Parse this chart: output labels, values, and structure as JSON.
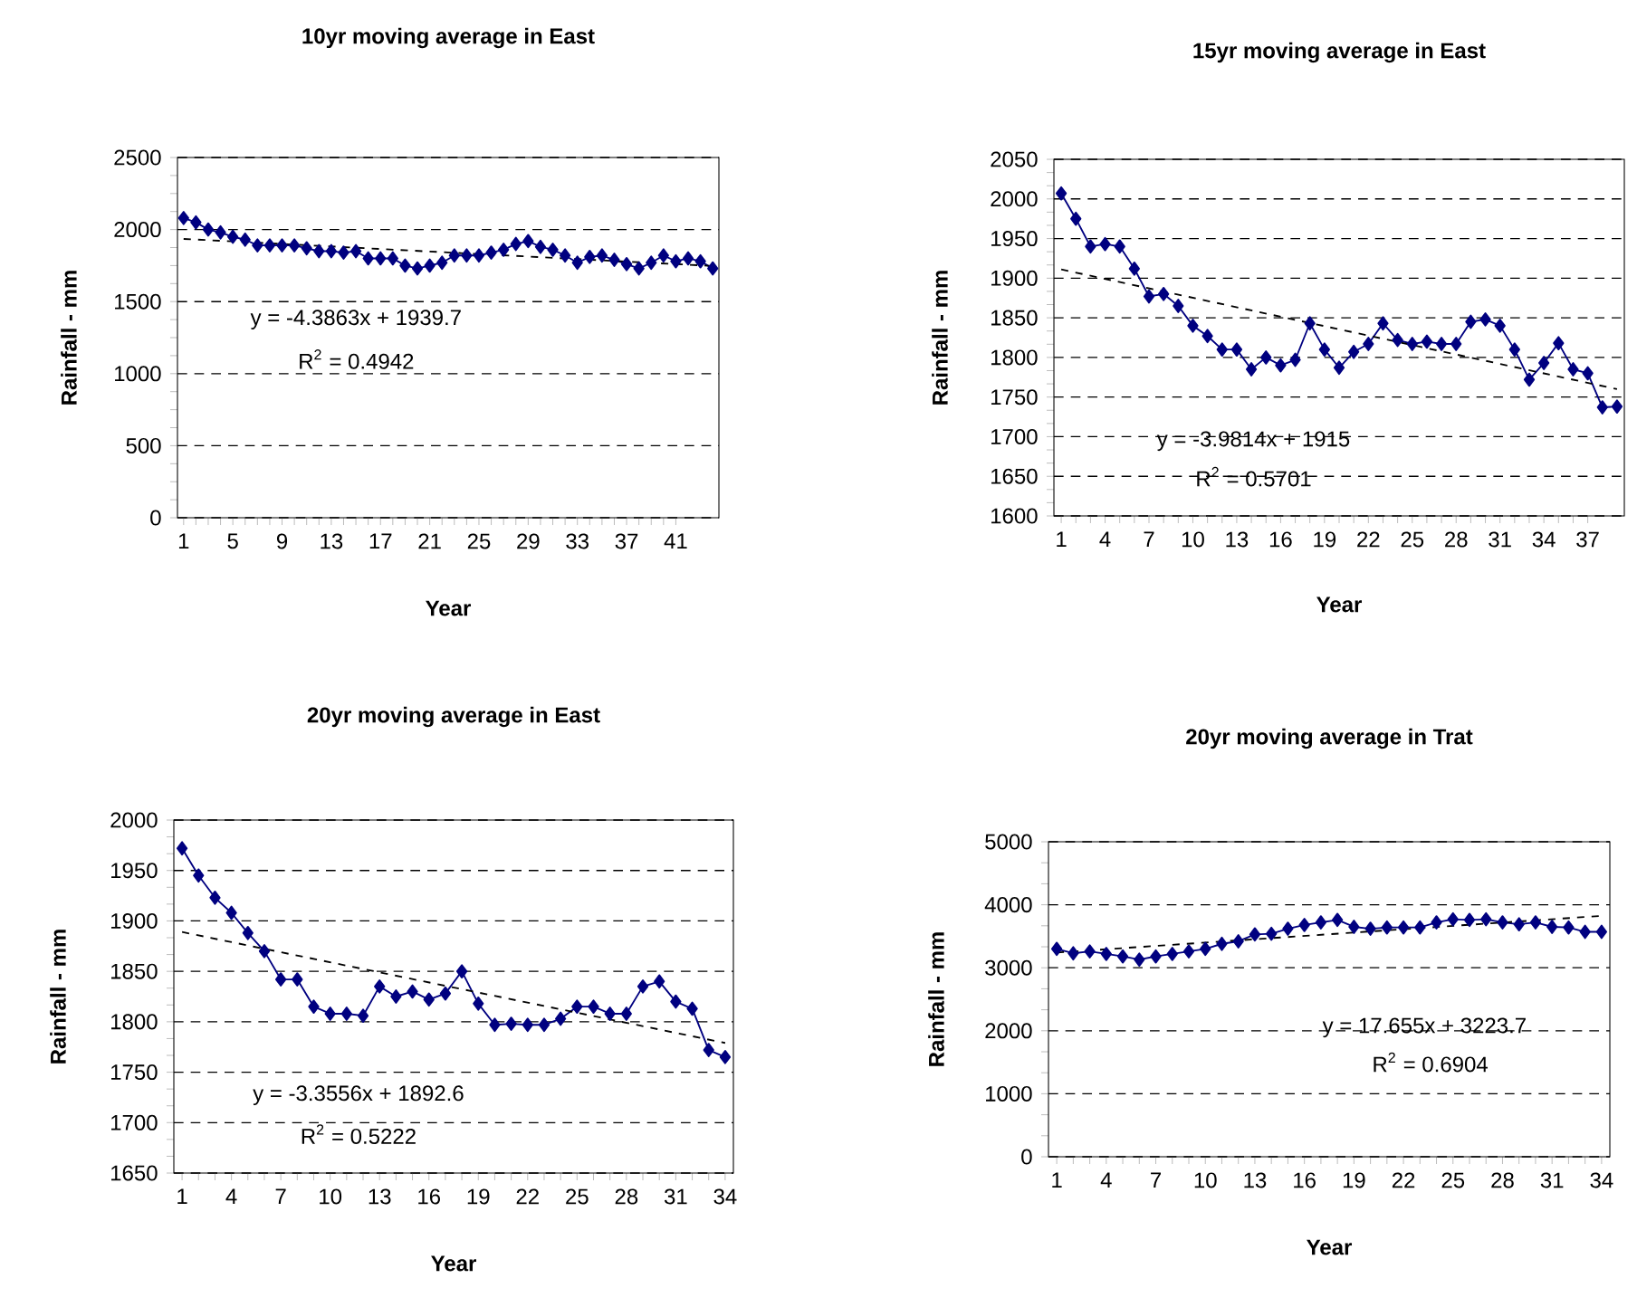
{
  "chart_data": [
    {
      "type": "line",
      "title": "10yr moving average in East",
      "xlabel": "Year",
      "ylabel": "Rainfall - mm",
      "x": [
        1,
        2,
        3,
        4,
        5,
        6,
        7,
        8,
        9,
        10,
        11,
        12,
        13,
        14,
        15,
        16,
        17,
        18,
        19,
        20,
        21,
        22,
        23,
        24,
        25,
        26,
        27,
        28,
        29,
        30,
        31,
        32,
        33,
        34,
        35,
        36,
        37,
        38,
        39,
        40,
        41,
        42,
        43,
        44
      ],
      "xlim": [
        0.5,
        44.5
      ],
      "xticks": [
        1,
        5,
        9,
        13,
        17,
        21,
        25,
        29,
        33,
        37,
        41
      ],
      "ylim": [
        0,
        2500
      ],
      "yticks": [
        0,
        500,
        1000,
        1500,
        2000,
        2500
      ],
      "grid": "y",
      "marker": "diamond",
      "series": [
        {
          "color": "#000080",
          "values": [
            2080,
            2050,
            2000,
            1980,
            1950,
            1930,
            1890,
            1890,
            1890,
            1890,
            1870,
            1850,
            1850,
            1840,
            1850,
            1800,
            1800,
            1800,
            1750,
            1730,
            1750,
            1770,
            1820,
            1820,
            1820,
            1840,
            1860,
            1900,
            1920,
            1880,
            1860,
            1820,
            1770,
            1810,
            1820,
            1790,
            1760,
            1730,
            1770,
            1820,
            1780,
            1800,
            1780,
            1730
          ]
        },
        {
          "type": "line",
          "x": [
            1,
            44
          ],
          "values": [
            1935,
            1747
          ],
          "color": "#000000",
          "marker": "none",
          "line_style": "dashed"
        }
      ],
      "annotations": [
        "y = -4.3863x + 1939.7",
        "R$^{2}$ = 0.4942"
      ]
    },
    {
      "type": "line",
      "title": "15yr moving average in East",
      "xlabel": "Year",
      "ylabel": "Rainfall - mm",
      "x": [
        1,
        2,
        3,
        4,
        5,
        6,
        7,
        8,
        9,
        10,
        11,
        12,
        13,
        14,
        15,
        16,
        17,
        18,
        19,
        20,
        21,
        22,
        23,
        24,
        25,
        26,
        27,
        28,
        29,
        30,
        31,
        32,
        33,
        34,
        35,
        36,
        37,
        38,
        39
      ],
      "xlim": [
        0.5,
        39.5
      ],
      "xticks": [
        1,
        4,
        7,
        10,
        13,
        16,
        19,
        22,
        25,
        28,
        31,
        34,
        37
      ],
      "ylim": [
        1600,
        2050
      ],
      "yticks": [
        1600,
        1650,
        1700,
        1750,
        1800,
        1850,
        1900,
        1950,
        2000,
        2050
      ],
      "grid": "y",
      "marker": "diamond",
      "series": [
        {
          "color": "#000080",
          "values": [
            2007,
            1975,
            1940,
            1943,
            1940,
            1912,
            1877,
            1880,
            1865,
            1840,
            1827,
            1810,
            1810,
            1785,
            1800,
            1790,
            1797,
            1843,
            1810,
            1787,
            1807,
            1817,
            1843,
            1822,
            1817,
            1820,
            1817,
            1817,
            1845,
            1848,
            1840,
            1810,
            1772,
            1793,
            1818,
            1785,
            1780,
            1737,
            1738
          ]
        },
        {
          "type": "line",
          "x": [
            1,
            39
          ],
          "values": [
            1911,
            1760
          ],
          "color": "#000000",
          "marker": "none",
          "line_style": "dashed"
        }
      ],
      "annotations": [
        "y = -3.9814x + 1915",
        "R$^{2}$ = 0.5701"
      ]
    },
    {
      "type": "line",
      "title": "20yr moving average in East",
      "xlabel": "Year",
      "ylabel": "Rainfall - mm",
      "x": [
        1,
        2,
        3,
        4,
        5,
        6,
        7,
        8,
        9,
        10,
        11,
        12,
        13,
        14,
        15,
        16,
        17,
        18,
        19,
        20,
        21,
        22,
        23,
        24,
        25,
        26,
        27,
        28,
        29,
        30,
        31,
        32,
        33,
        34
      ],
      "xlim": [
        0.5,
        34.5
      ],
      "xticks": [
        1,
        4,
        7,
        10,
        13,
        16,
        19,
        22,
        25,
        28,
        31,
        34
      ],
      "ylim": [
        1650,
        2000
      ],
      "yticks": [
        1650,
        1700,
        1750,
        1800,
        1850,
        1900,
        1950,
        2000
      ],
      "grid": "y",
      "marker": "diamond",
      "series": [
        {
          "color": "#000080",
          "values": [
            1972,
            1945,
            1923,
            1908,
            1888,
            1870,
            1842,
            1842,
            1815,
            1808,
            1808,
            1806,
            1835,
            1825,
            1830,
            1822,
            1828,
            1850,
            1818,
            1797,
            1798,
            1797,
            1797,
            1803,
            1815,
            1815,
            1808,
            1808,
            1835,
            1840,
            1820,
            1813,
            1772,
            1765
          ]
        },
        {
          "type": "line",
          "x": [
            1,
            34
          ],
          "values": [
            1889,
            1779
          ],
          "color": "#000000",
          "marker": "none",
          "line_style": "dashed"
        }
      ],
      "annotations": [
        "y = -3.3556x + 1892.6",
        "R$^{2}$ = 0.5222"
      ]
    },
    {
      "type": "line",
      "title": "20yr moving average in Trat",
      "xlabel": "Year",
      "ylabel": "Rainfall - mm",
      "x": [
        1,
        2,
        3,
        4,
        5,
        6,
        7,
        8,
        9,
        10,
        11,
        12,
        13,
        14,
        15,
        16,
        17,
        18,
        19,
        20,
        21,
        22,
        23,
        24,
        25,
        26,
        27,
        28,
        29,
        30,
        31,
        32,
        33,
        34
      ],
      "xlim": [
        0.5,
        34.5
      ],
      "xticks": [
        1,
        4,
        7,
        10,
        13,
        16,
        19,
        22,
        25,
        28,
        31,
        34
      ],
      "ylim": [
        0,
        5000
      ],
      "yticks": [
        0,
        1000,
        2000,
        3000,
        4000,
        5000
      ],
      "grid": "y",
      "marker": "diamond",
      "series": [
        {
          "color": "#000080",
          "values": [
            3300,
            3230,
            3260,
            3220,
            3180,
            3130,
            3180,
            3220,
            3260,
            3300,
            3380,
            3420,
            3530,
            3540,
            3620,
            3680,
            3720,
            3760,
            3650,
            3620,
            3640,
            3640,
            3640,
            3720,
            3770,
            3760,
            3770,
            3720,
            3690,
            3720,
            3650,
            3640,
            3570,
            3570
          ]
        },
        {
          "type": "line",
          "x": [
            1,
            34
          ],
          "values": [
            3241,
            3824
          ],
          "color": "#000000",
          "marker": "none",
          "line_style": "dashed"
        }
      ],
      "annotations": [
        "y = 17.655x + 3223.7",
        "R$^{2}$ = 0.6904"
      ]
    }
  ]
}
